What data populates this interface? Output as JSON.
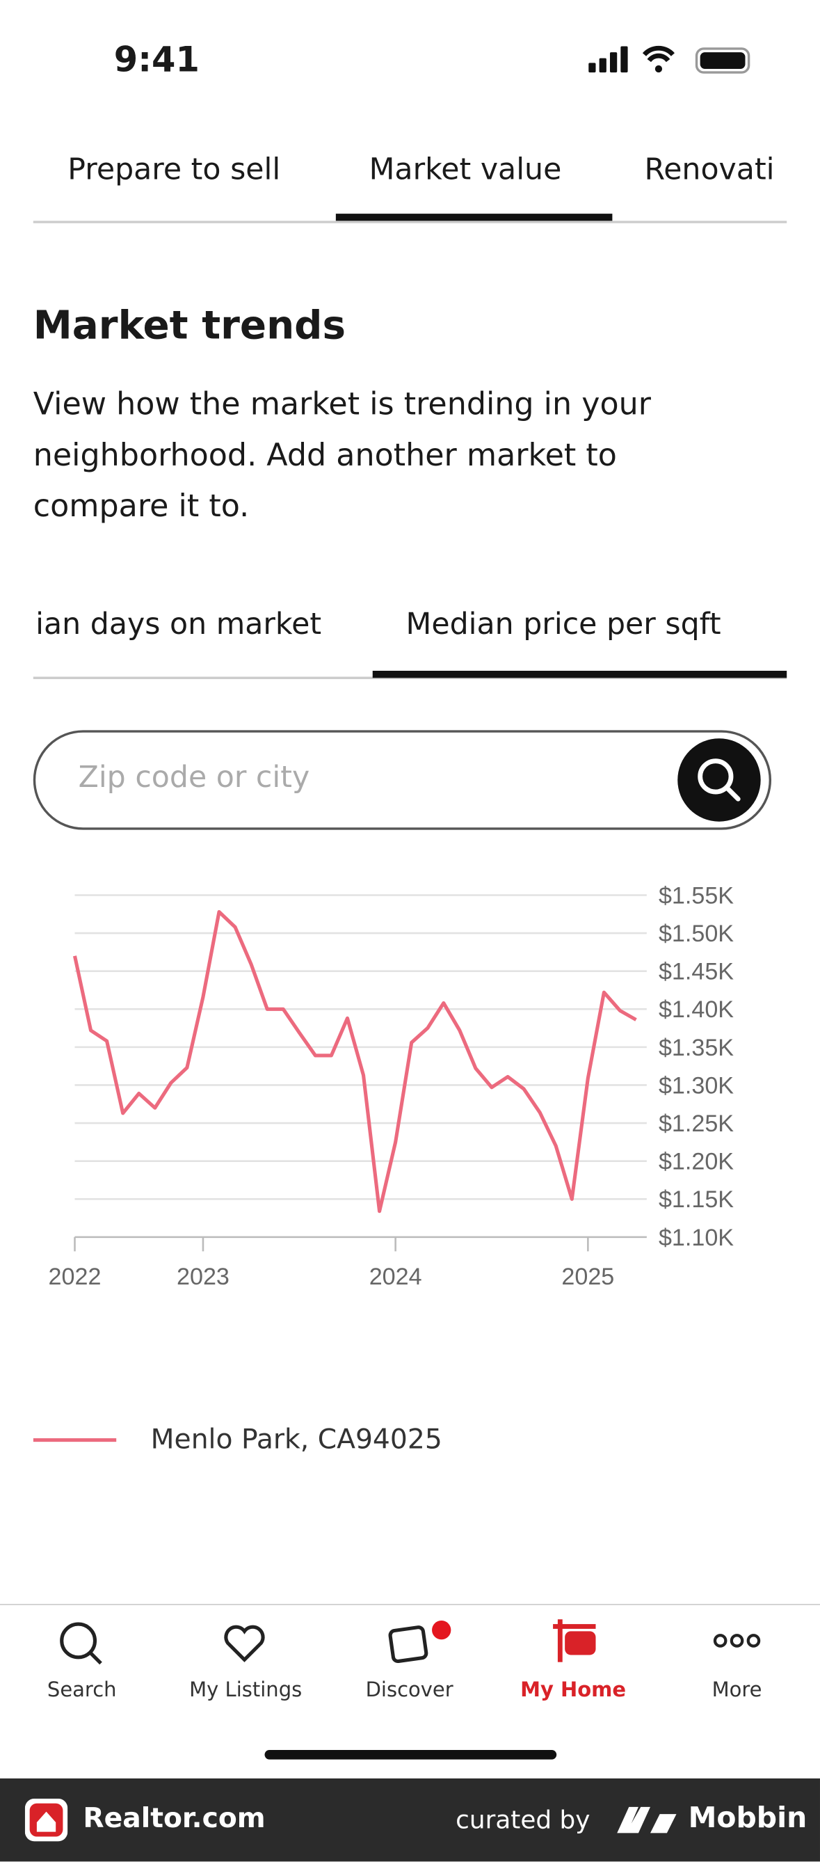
{
  "status_bar": {
    "time": "9:41"
  },
  "top_tabs": [
    "Prepare to sell",
    "Market value",
    "Renovati"
  ],
  "section": {
    "title": "Market trends",
    "description": "View how the market is trending in your neighborhood. Add another market to compare it to."
  },
  "metric_tabs": [
    "ian days on market",
    "Median price per sqft"
  ],
  "search": {
    "placeholder": "Zip code or city"
  },
  "chart_data": {
    "type": "line",
    "x": [
      0,
      1,
      2,
      3,
      4,
      5,
      6,
      7,
      8,
      9,
      10,
      11,
      12,
      13,
      14,
      15,
      16,
      17,
      18,
      19,
      20,
      21,
      22,
      23,
      24,
      25,
      26,
      27,
      28,
      29,
      30,
      31,
      32,
      33,
      34,
      35
    ],
    "series": [
      {
        "name": "Menlo Park, CA94025",
        "color": "#ec6a7e",
        "values": [
          1.47,
          1.372,
          1.358,
          1.263,
          1.289,
          1.27,
          1.303,
          1.323,
          1.416,
          1.528,
          1.508,
          1.459,
          1.4,
          1.4,
          1.369,
          1.339,
          1.339,
          1.388,
          1.313,
          1.134,
          1.225,
          1.356,
          1.375,
          1.408,
          1.372,
          1.322,
          1.297,
          1.311,
          1.295,
          1.264,
          1.22,
          1.15,
          1.309,
          1.422,
          1.398,
          1.386
        ]
      }
    ],
    "xlim": [
      0,
      35
    ],
    "xticks": [
      {
        "value": 0,
        "label": "2022"
      },
      {
        "value": 8,
        "label": "2023"
      },
      {
        "value": 20,
        "label": "2024"
      },
      {
        "value": 32,
        "label": "2025"
      }
    ],
    "ylim": [
      1.1,
      1.55
    ],
    "yticks": [
      {
        "value": 1.1,
        "label": "$1.10K"
      },
      {
        "value": 1.15,
        "label": "$1.15K"
      },
      {
        "value": 1.2,
        "label": "$1.20K"
      },
      {
        "value": 1.25,
        "label": "$1.25K"
      },
      {
        "value": 1.3,
        "label": "$1.30K"
      },
      {
        "value": 1.35,
        "label": "$1.35K"
      },
      {
        "value": 1.4,
        "label": "$1.40K"
      },
      {
        "value": 1.45,
        "label": "$1.45K"
      },
      {
        "value": 1.5,
        "label": "$1.50K"
      },
      {
        "value": 1.55,
        "label": "$1.55K"
      }
    ],
    "grid": true
  },
  "nav": [
    "Search",
    "My Listings",
    "Discover",
    "My Home",
    "More"
  ],
  "footer": {
    "brand": "Realtor.com",
    "curated": "curated by",
    "mobbin": "Mobbin"
  }
}
